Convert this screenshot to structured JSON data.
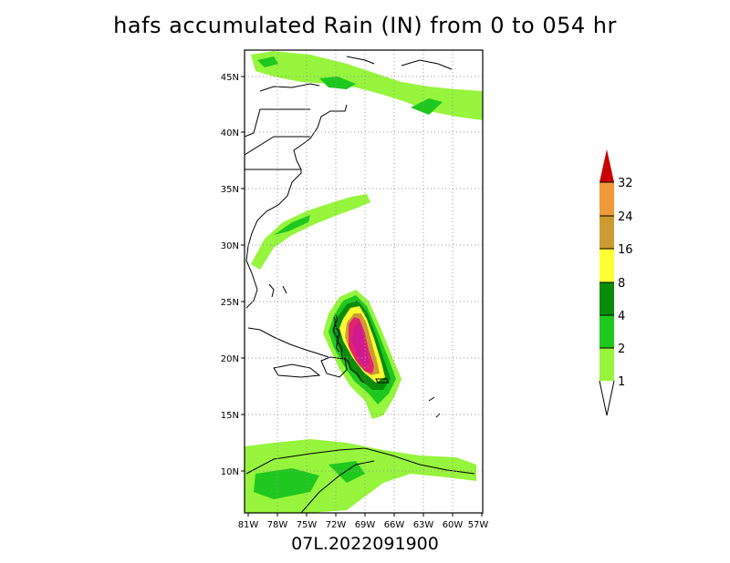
{
  "title": "hafs accumulated Rain (IN) from 0 to 054 hr",
  "subtitle": "07L.2022091900",
  "lat_ticks": [
    "45N",
    "40N",
    "35N",
    "30N",
    "25N",
    "20N",
    "15N",
    "10N"
  ],
  "lon_ticks": [
    "81W",
    "78W",
    "75W",
    "72W",
    "69W",
    "66W",
    "63W",
    "60W",
    "57W"
  ],
  "colorbar": {
    "labels": [
      "1",
      "2",
      "4",
      "8",
      "16",
      "24",
      "32"
    ],
    "colors": [
      "#96f53c",
      "#1ec81e",
      "#0a8c0a",
      "#ffff32",
      "#cd9b32",
      "#ef9a3b",
      "#c80000"
    ]
  },
  "map_extent": {
    "lon_min": -81,
    "lon_max": -57,
    "lat_min": 6.5,
    "lat_max": 47.5
  }
}
